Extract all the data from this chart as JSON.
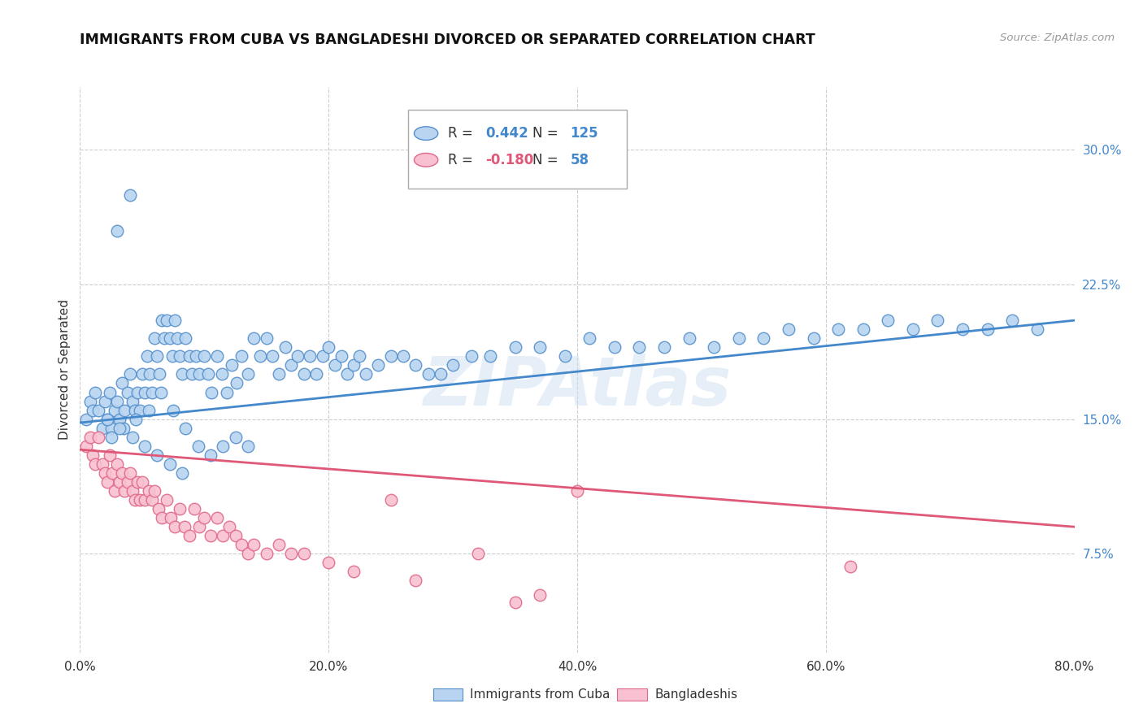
{
  "title": "IMMIGRANTS FROM CUBA VS BANGLADESHI DIVORCED OR SEPARATED CORRELATION CHART",
  "source": "Source: ZipAtlas.com",
  "ylabel": "Divorced or Separated",
  "yticks": [
    "7.5%",
    "15.0%",
    "22.5%",
    "30.0%"
  ],
  "ytick_values": [
    0.075,
    0.15,
    0.225,
    0.3
  ],
  "xtick_values": [
    0.0,
    0.2,
    0.4,
    0.6,
    0.8
  ],
  "xtick_labels": [
    "0.0%",
    "20.0%",
    "40.0%",
    "60.0%",
    "80.0%"
  ],
  "xlim": [
    0.0,
    0.8
  ],
  "ylim": [
    0.02,
    0.335
  ],
  "watermark": "ZIPAtlas",
  "legend_r1": "0.442",
  "legend_n1": "125",
  "legend_r2": "-0.180",
  "legend_n2": "58",
  "legend_label1": "Immigrants from Cuba",
  "legend_label2": "Bangladeshis",
  "blue_scatter_x": [
    0.005,
    0.008,
    0.01,
    0.012,
    0.015,
    0.018,
    0.02,
    0.022,
    0.024,
    0.025,
    0.028,
    0.03,
    0.032,
    0.034,
    0.036,
    0.038,
    0.04,
    0.042,
    0.044,
    0.046,
    0.048,
    0.05,
    0.052,
    0.054,
    0.056,
    0.058,
    0.06,
    0.062,
    0.064,
    0.066,
    0.068,
    0.07,
    0.072,
    0.074,
    0.076,
    0.078,
    0.08,
    0.082,
    0.085,
    0.088,
    0.09,
    0.093,
    0.096,
    0.1,
    0.103,
    0.106,
    0.11,
    0.114,
    0.118,
    0.122,
    0.126,
    0.13,
    0.135,
    0.14,
    0.145,
    0.15,
    0.155,
    0.16,
    0.165,
    0.17,
    0.175,
    0.18,
    0.185,
    0.19,
    0.195,
    0.2,
    0.205,
    0.21,
    0.215,
    0.22,
    0.225,
    0.23,
    0.24,
    0.25,
    0.26,
    0.27,
    0.28,
    0.29,
    0.3,
    0.315,
    0.33,
    0.35,
    0.37,
    0.39,
    0.41,
    0.43,
    0.45,
    0.47,
    0.49,
    0.51,
    0.53,
    0.55,
    0.57,
    0.59,
    0.61,
    0.63,
    0.65,
    0.67,
    0.69,
    0.71,
    0.73,
    0.75,
    0.77,
    0.025,
    0.035,
    0.045,
    0.055,
    0.065,
    0.075,
    0.085,
    0.095,
    0.105,
    0.115,
    0.125,
    0.135,
    0.022,
    0.032,
    0.042,
    0.052,
    0.062,
    0.072,
    0.082,
    0.03,
    0.04
  ],
  "blue_scatter_y": [
    0.15,
    0.16,
    0.155,
    0.165,
    0.155,
    0.145,
    0.16,
    0.15,
    0.165,
    0.145,
    0.155,
    0.16,
    0.15,
    0.17,
    0.155,
    0.165,
    0.175,
    0.16,
    0.155,
    0.165,
    0.155,
    0.175,
    0.165,
    0.185,
    0.175,
    0.165,
    0.195,
    0.185,
    0.175,
    0.205,
    0.195,
    0.205,
    0.195,
    0.185,
    0.205,
    0.195,
    0.185,
    0.175,
    0.195,
    0.185,
    0.175,
    0.185,
    0.175,
    0.185,
    0.175,
    0.165,
    0.185,
    0.175,
    0.165,
    0.18,
    0.17,
    0.185,
    0.175,
    0.195,
    0.185,
    0.195,
    0.185,
    0.175,
    0.19,
    0.18,
    0.185,
    0.175,
    0.185,
    0.175,
    0.185,
    0.19,
    0.18,
    0.185,
    0.175,
    0.18,
    0.185,
    0.175,
    0.18,
    0.185,
    0.185,
    0.18,
    0.175,
    0.175,
    0.18,
    0.185,
    0.185,
    0.19,
    0.19,
    0.185,
    0.195,
    0.19,
    0.19,
    0.19,
    0.195,
    0.19,
    0.195,
    0.195,
    0.2,
    0.195,
    0.2,
    0.2,
    0.205,
    0.2,
    0.205,
    0.2,
    0.2,
    0.205,
    0.2,
    0.14,
    0.145,
    0.15,
    0.155,
    0.165,
    0.155,
    0.145,
    0.135,
    0.13,
    0.135,
    0.14,
    0.135,
    0.15,
    0.145,
    0.14,
    0.135,
    0.13,
    0.125,
    0.12,
    0.255,
    0.275
  ],
  "pink_scatter_x": [
    0.005,
    0.008,
    0.01,
    0.012,
    0.015,
    0.018,
    0.02,
    0.022,
    0.024,
    0.026,
    0.028,
    0.03,
    0.032,
    0.034,
    0.036,
    0.038,
    0.04,
    0.042,
    0.044,
    0.046,
    0.048,
    0.05,
    0.052,
    0.055,
    0.058,
    0.06,
    0.063,
    0.066,
    0.07,
    0.073,
    0.076,
    0.08,
    0.084,
    0.088,
    0.092,
    0.096,
    0.1,
    0.105,
    0.11,
    0.115,
    0.12,
    0.125,
    0.13,
    0.135,
    0.14,
    0.15,
    0.16,
    0.17,
    0.18,
    0.2,
    0.22,
    0.25,
    0.27,
    0.32,
    0.35,
    0.62,
    0.37,
    0.4
  ],
  "pink_scatter_y": [
    0.135,
    0.14,
    0.13,
    0.125,
    0.14,
    0.125,
    0.12,
    0.115,
    0.13,
    0.12,
    0.11,
    0.125,
    0.115,
    0.12,
    0.11,
    0.115,
    0.12,
    0.11,
    0.105,
    0.115,
    0.105,
    0.115,
    0.105,
    0.11,
    0.105,
    0.11,
    0.1,
    0.095,
    0.105,
    0.095,
    0.09,
    0.1,
    0.09,
    0.085,
    0.1,
    0.09,
    0.095,
    0.085,
    0.095,
    0.085,
    0.09,
    0.085,
    0.08,
    0.075,
    0.08,
    0.075,
    0.08,
    0.075,
    0.075,
    0.07,
    0.065,
    0.105,
    0.06,
    0.075,
    0.048,
    0.068,
    0.052,
    0.11
  ],
  "blue_line_x": [
    0.0,
    0.8
  ],
  "blue_line_y": [
    0.148,
    0.205
  ],
  "pink_line_x": [
    0.0,
    0.8
  ],
  "pink_line_y": [
    0.133,
    0.09
  ],
  "blue_scatter_face": "#b8d4f0",
  "blue_scatter_edge": "#5590cc",
  "pink_scatter_face": "#f8c0d0",
  "pink_scatter_edge": "#e06888",
  "blue_line_color": "#4488cc",
  "pink_line_color": "#e05878"
}
